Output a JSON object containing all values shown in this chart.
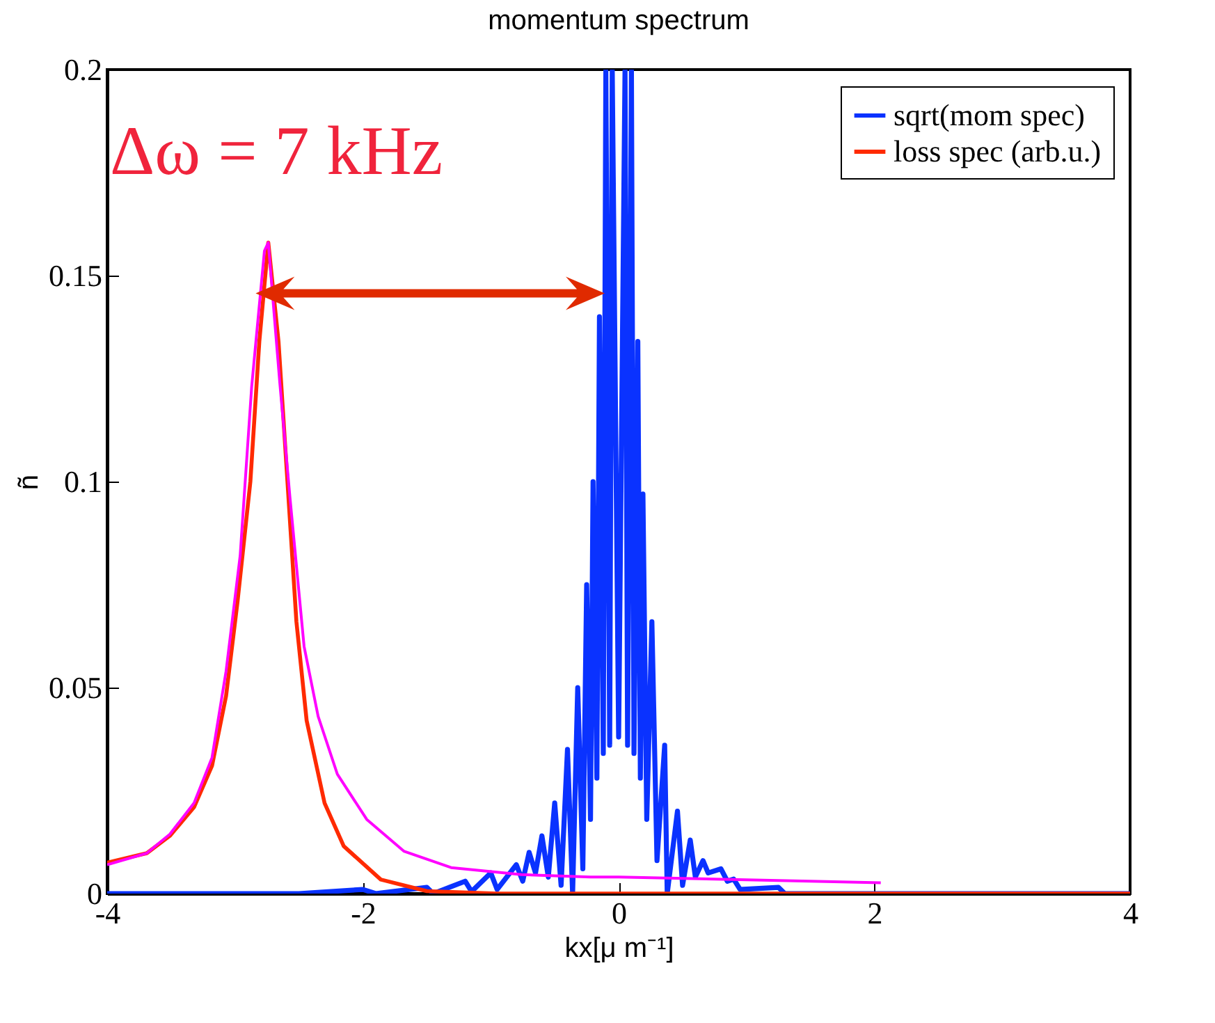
{
  "chart_data": {
    "type": "line",
    "title": "momentum spectrum",
    "xlabel": "kx[μ m⁻¹]",
    "ylabel": "ñ",
    "xlim": [
      -4,
      4
    ],
    "xticks": [
      -4,
      -2,
      0,
      2,
      4
    ],
    "ylim": [
      0,
      0.2
    ],
    "yticks": [
      0,
      0.05,
      0.1,
      0.15,
      0.2
    ],
    "grid": false,
    "legend": "top right",
    "annotations": [
      "Δω = 7 kHz"
    ],
    "series": [
      {
        "name": "sqrt(mom spec)",
        "color": "#0a32ff",
        "x": [
          -4,
          -2.5,
          -2.0,
          -1.9,
          -1.5,
          -1.45,
          -1.2,
          -1.15,
          -1.0,
          -0.95,
          -0.8,
          -0.75,
          -0.7,
          -0.65,
          -0.6,
          -0.55,
          -0.5,
          -0.45,
          -0.4,
          -0.36,
          -0.32,
          -0.28,
          -0.25,
          -0.22,
          -0.2,
          -0.17,
          -0.15,
          -0.12,
          -0.1,
          -0.07,
          -0.05,
          0,
          0.05,
          0.07,
          0.1,
          0.12,
          0.15,
          0.17,
          0.19,
          0.22,
          0.26,
          0.3,
          0.36,
          0.38,
          0.46,
          0.5,
          0.56,
          0.6,
          0.66,
          0.7,
          0.8,
          0.85,
          0.9,
          0.95,
          1.25,
          1.3,
          1.8,
          4
        ],
        "values": [
          0,
          0,
          0.001,
          0,
          0.0015,
          0,
          0.003,
          0.0005,
          0.005,
          0.001,
          0.007,
          0.003,
          0.01,
          0.005,
          0.014,
          0.004,
          0.022,
          0.002,
          0.035,
          0,
          0.05,
          0.006,
          0.075,
          0.018,
          0.1,
          0.028,
          0.14,
          0.034,
          0.2,
          0.036,
          0.2,
          0.038,
          0.2,
          0.036,
          0.2,
          0.034,
          0.134,
          0.028,
          0.097,
          0.018,
          0.066,
          0.008,
          0.036,
          0,
          0.02,
          0.002,
          0.013,
          0.004,
          0.008,
          0.005,
          0.006,
          0.003,
          0.0035,
          0.001,
          0.0015,
          0,
          0,
          0
        ]
      },
      {
        "name": "loss spec (arb.u.)",
        "color": "#ff2a00",
        "x": [
          -4,
          -3.69,
          -3.51,
          -3.32,
          -3.18,
          -3.07,
          -2.98,
          -2.88,
          -2.81,
          -2.74,
          -2.66,
          -2.59,
          -2.52,
          -2.44,
          -2.3,
          -2.15,
          -1.86,
          -1.5,
          -0.95,
          4
        ],
        "values": [
          0.0075,
          0.0098,
          0.014,
          0.021,
          0.031,
          0.048,
          0.071,
          0.1,
          0.134,
          0.158,
          0.134,
          0.1,
          0.066,
          0.042,
          0.022,
          0.0115,
          0.0034,
          0.0006,
          0,
          0
        ]
      },
      {
        "color": "#ff00ff",
        "x": [
          -4,
          -3.69,
          -3.51,
          -3.32,
          -3.18,
          -3.07,
          -2.96,
          -2.87,
          -2.77,
          -2.74,
          -2.65,
          -2.57,
          -2.46,
          -2.35,
          -2.2,
          -1.97,
          -1.68,
          -1.31,
          -0.76,
          -0.22,
          0,
          1.5,
          2.05
        ],
        "values": [
          0.007,
          0.0098,
          0.0144,
          0.022,
          0.033,
          0.054,
          0.082,
          0.123,
          0.156,
          0.158,
          0.124,
          0.096,
          0.06,
          0.043,
          0.029,
          0.018,
          0.0103,
          0.0063,
          0.0046,
          0.004,
          0.004,
          0.003,
          0.0026
        ]
      }
    ]
  }
}
